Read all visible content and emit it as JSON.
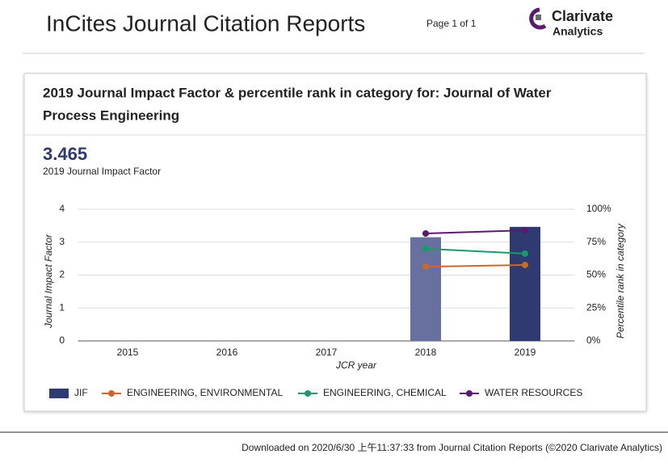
{
  "header": {
    "title": "InCites Journal Citation Reports",
    "page": "Page 1 of 1",
    "logo_name": "Clarivate",
    "logo_sub": "Analytics"
  },
  "card": {
    "title_line1": "2019 Journal Impact Factor & percentile rank in category for: Journal of Water",
    "title_line2": "Process Engineering",
    "jif": "3.465",
    "jif_label": "2019 Journal Impact Factor"
  },
  "footer": {
    "text": "Downloaded on 2020/6/30 上午11:37:33 from Journal Citation Reports (©2020 Clarivate Analytics)"
  },
  "chart_data": {
    "type": "bar",
    "xlabel": "JCR year",
    "ylabel": "Journal Impact Factor",
    "y2label": "Percentile rank in category",
    "categories": [
      "2015",
      "2016",
      "2017",
      "2018",
      "2019"
    ],
    "series": [
      {
        "name": "JIF",
        "type": "bar",
        "color": "#2e3a70",
        "colors": [
          "#2e3a70",
          "#2e3a70",
          "#2e3a70",
          "#6870a0",
          "#2e3a70"
        ],
        "values": [
          null,
          null,
          null,
          3.15,
          3.465
        ]
      },
      {
        "name": "ENGINEERING, ENVIRONMENTAL",
        "type": "line",
        "axis": "y2",
        "color": "#c8692c",
        "values": [
          null,
          null,
          null,
          56.4,
          57.7
        ]
      },
      {
        "name": "ENGINEERING, CHEMICAL",
        "type": "line",
        "axis": "y2",
        "color": "#1a9a6c",
        "values": [
          null,
          null,
          null,
          70,
          66.3
        ]
      },
      {
        "name": "WATER RESOURCES",
        "type": "line",
        "axis": "y2",
        "color": "#5a1a6e",
        "values": [
          null,
          null,
          null,
          81.6,
          84
        ]
      }
    ],
    "ylim": [
      0,
      4
    ],
    "yticks": [
      0,
      1,
      2,
      3,
      4
    ],
    "y2lim": [
      0,
      100
    ],
    "y2ticks": [
      {
        "value": 0,
        "label": "0%"
      },
      {
        "value": 25,
        "label": "25%"
      },
      {
        "value": 50,
        "label": "50%"
      },
      {
        "value": 75,
        "label": "75%"
      },
      {
        "value": 100,
        "label": "100%"
      }
    ],
    "grid": true
  }
}
